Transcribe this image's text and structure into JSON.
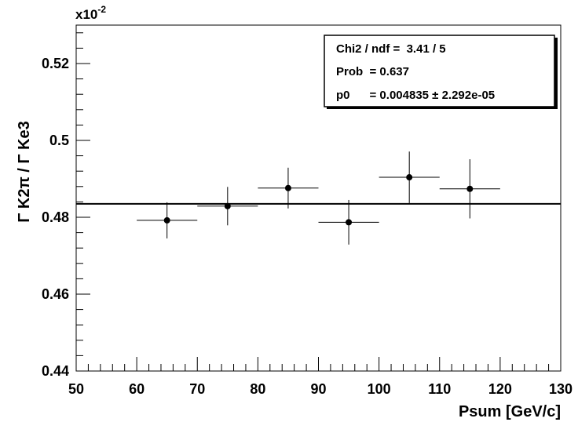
{
  "chart_data": {
    "type": "scatter",
    "xlabel": "Psum [GeV/c]",
    "ylabel": "Γ K2π / Γ Ke3",
    "y_exponent_base": "x10",
    "y_exponent_power": "-2",
    "xlim": [
      50,
      130
    ],
    "ylim": [
      0.44,
      0.53
    ],
    "x_ticks": [
      50,
      60,
      70,
      80,
      90,
      100,
      110,
      120,
      130
    ],
    "x_tick_labels": [
      "50",
      "60",
      "70",
      "80",
      "90",
      "100",
      "110",
      "120",
      "130"
    ],
    "y_ticks": [
      0.44,
      0.46,
      0.48,
      0.5,
      0.52
    ],
    "y_tick_labels": [
      "0.44",
      "0.46",
      "0.48",
      "0.5",
      "0.52"
    ],
    "grid": false,
    "points": [
      {
        "x": 65,
        "xerr": 5,
        "y": 0.4792,
        "yerr": 0.0047
      },
      {
        "x": 75,
        "xerr": 5,
        "y": 0.4829,
        "yerr": 0.005
      },
      {
        "x": 85,
        "xerr": 5,
        "y": 0.4876,
        "yerr": 0.0053
      },
      {
        "x": 95,
        "xerr": 5,
        "y": 0.4787,
        "yerr": 0.0058
      },
      {
        "x": 105,
        "xerr": 5,
        "y": 0.4904,
        "yerr": 0.0067
      },
      {
        "x": 115,
        "xerr": 5,
        "y": 0.4874,
        "yerr": 0.0077
      }
    ],
    "fit": {
      "type": "constant",
      "value": 0.4835,
      "x_range": [
        50,
        130
      ]
    },
    "stats_box": {
      "placement": "top-right",
      "lines": [
        "Chi2 / ndf =  3.41 / 5",
        "Prob  = 0.637",
        "p0      = 0.004835 ± 2.292e-05"
      ]
    }
  }
}
